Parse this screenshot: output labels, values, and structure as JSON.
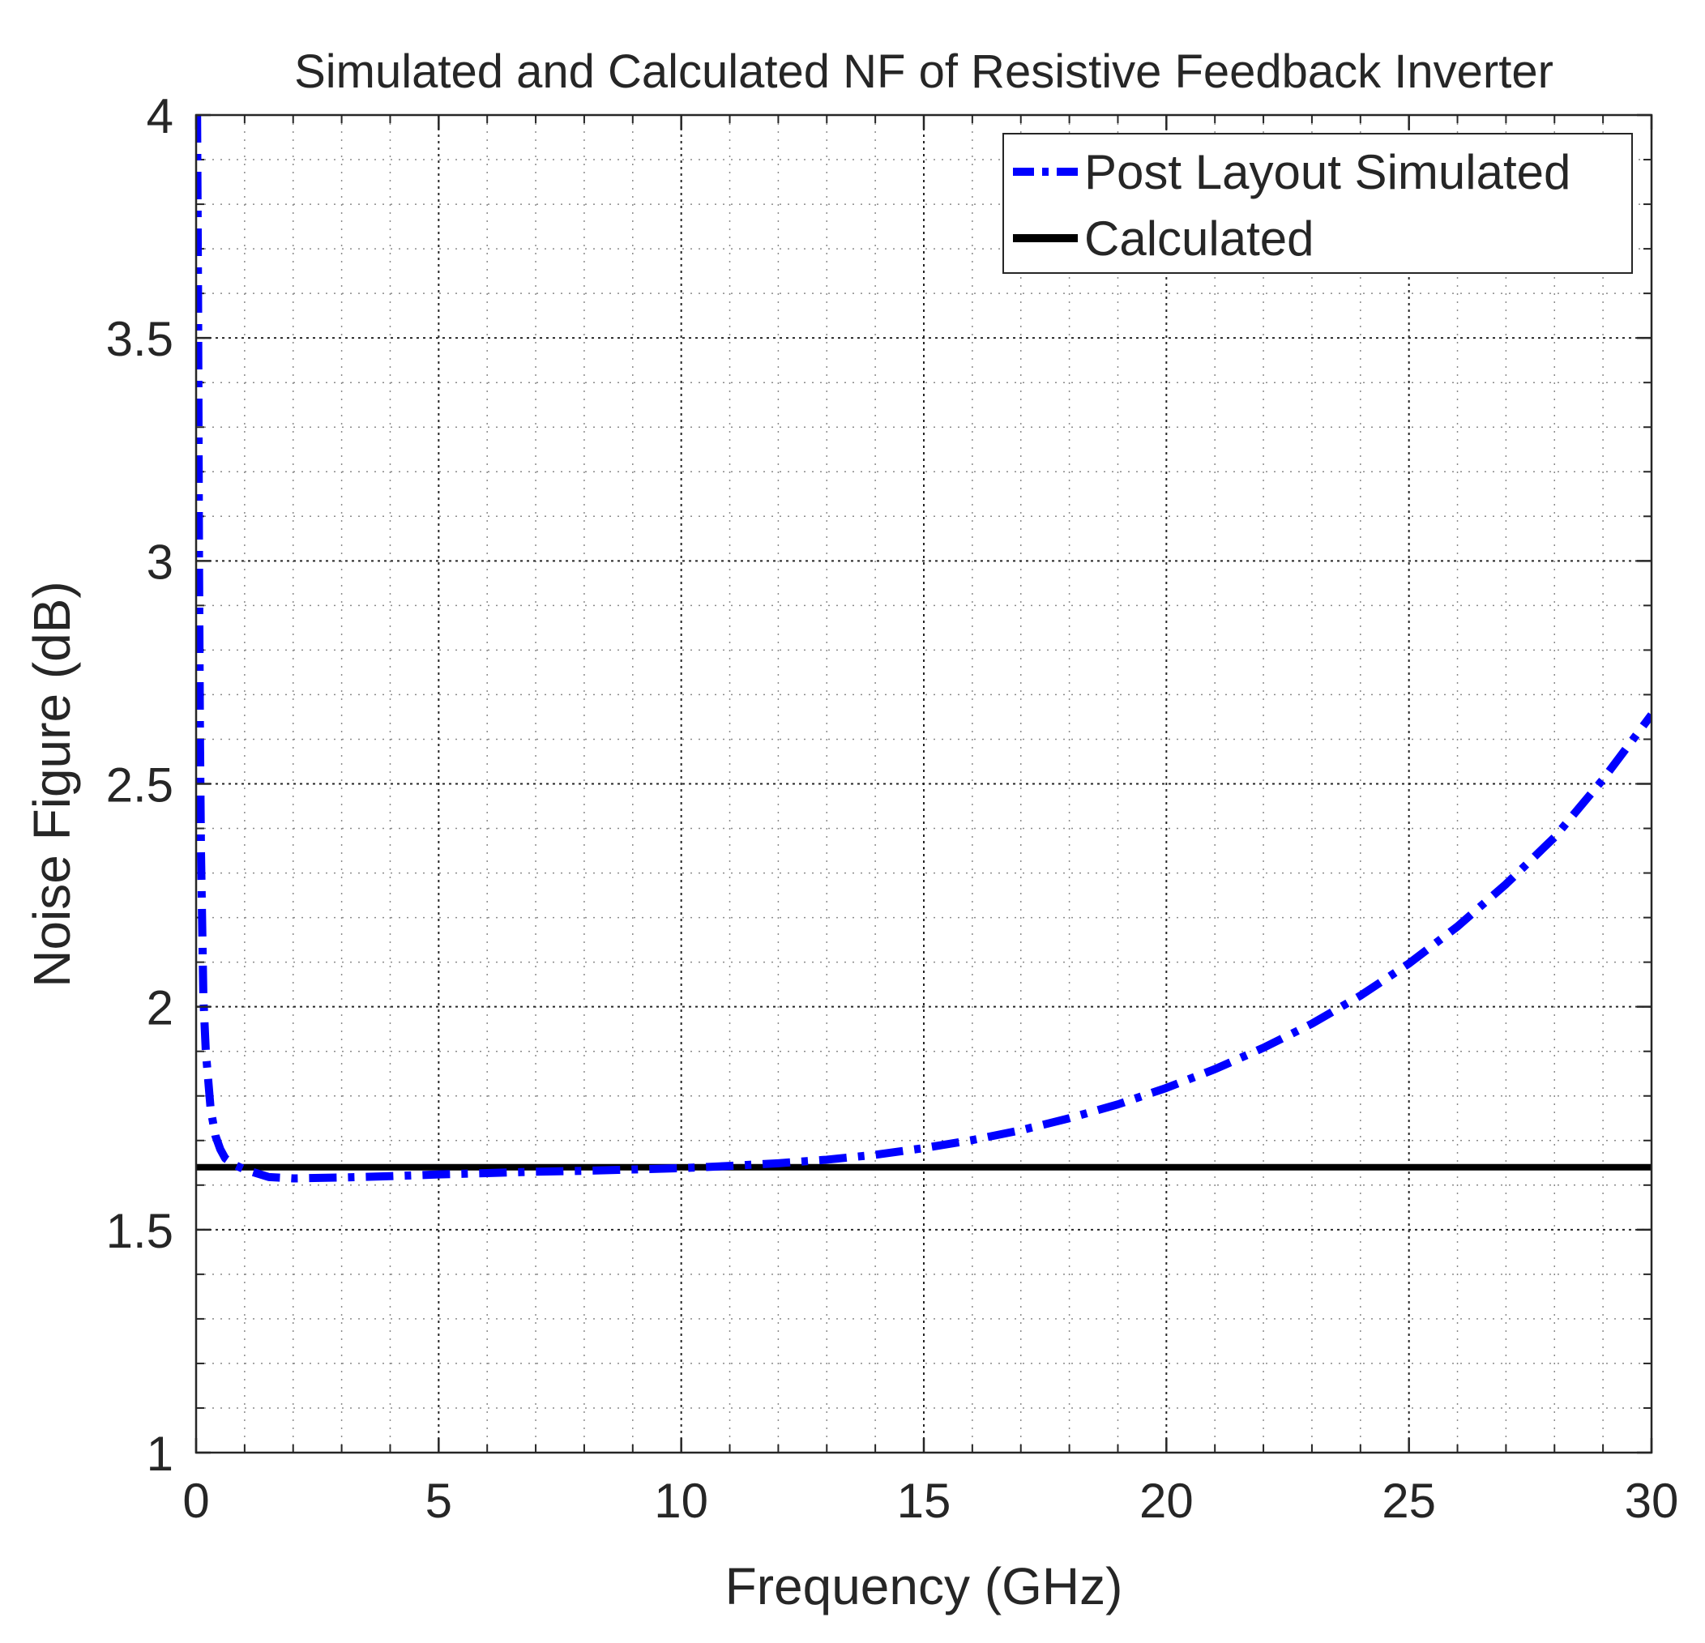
{
  "chart_data": {
    "type": "line",
    "title": "Simulated and Calculated NF of Resistive Feedback Inverter",
    "xlabel": "Frequency (GHz)",
    "ylabel": "Noise Figure (dB)",
    "xlim": [
      0,
      30
    ],
    "ylim": [
      1,
      4
    ],
    "xticks": [
      0,
      5,
      10,
      15,
      20,
      25,
      30
    ],
    "xtick_labels": [
      "0",
      "5",
      "10",
      "15",
      "20",
      "25",
      "30"
    ],
    "yticks": [
      1,
      1.5,
      2,
      2.5,
      3,
      3.5,
      4
    ],
    "ytick_labels": [
      "1",
      "1.5",
      "2",
      "2.5",
      "3",
      "3.5",
      "4"
    ],
    "x_minor_step": 1,
    "y_minor_step": 0.1,
    "grid": true,
    "legend_position": "top-right",
    "series": [
      {
        "name": "Post Layout Simulated",
        "color": "#0000ff",
        "style": "dashdot",
        "x": [
          0.02,
          0.04,
          0.06,
          0.08,
          0.1,
          0.15,
          0.2,
          0.3,
          0.4,
          0.5,
          0.6,
          0.8,
          1.0,
          1.5,
          2.0,
          3.0,
          4.0,
          5.0,
          6.0,
          7.0,
          8.0,
          9.0,
          10.0,
          11.0,
          12.0,
          13.0,
          14.0,
          15.0,
          16.0,
          17.0,
          18.0,
          19.0,
          20.0,
          21.0,
          22.0,
          23.0,
          24.0,
          25.0,
          26.0,
          27.0,
          28.0,
          29.0,
          30.0
        ],
        "y": [
          4.0,
          3.6,
          3.0,
          2.6,
          2.35,
          2.02,
          1.9,
          1.77,
          1.71,
          1.68,
          1.66,
          1.645,
          1.635,
          1.618,
          1.615,
          1.617,
          1.62,
          1.624,
          1.627,
          1.63,
          1.632,
          1.635,
          1.638,
          1.643,
          1.649,
          1.657,
          1.668,
          1.683,
          1.701,
          1.723,
          1.75,
          1.781,
          1.818,
          1.86,
          1.908,
          1.962,
          2.025,
          2.097,
          2.18,
          2.275,
          2.38,
          2.51,
          2.655
        ]
      },
      {
        "name": "Calculated",
        "color": "#000000",
        "style": "solid",
        "x": [
          0,
          30
        ],
        "y": [
          1.64,
          1.64
        ]
      }
    ]
  }
}
